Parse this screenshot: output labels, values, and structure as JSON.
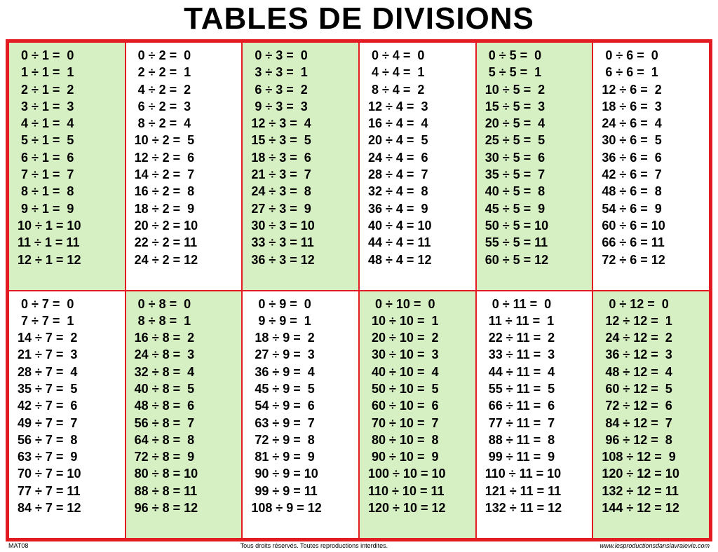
{
  "title": "TABLES DE DIVISIONS",
  "title_fontsize": 44,
  "border_color": "#e31c23",
  "border_width_outer": 5,
  "border_width_inner": 2,
  "highlight_bg": "#d6efc3",
  "plain_bg": "#ffffff",
  "text_color": "#000000",
  "eq_fontsize": 18,
  "layout": {
    "rows": 2,
    "cols": 6
  },
  "divisors_row1": [
    1,
    2,
    3,
    4,
    5,
    6
  ],
  "divisors_row2": [
    7,
    8,
    9,
    10,
    11,
    12
  ],
  "results": [
    0,
    1,
    2,
    3,
    4,
    5,
    6,
    7,
    8,
    9,
    10,
    11,
    12
  ],
  "highlight_row1": [
    true,
    false,
    true,
    false,
    true,
    false
  ],
  "highlight_row2": [
    false,
    true,
    false,
    true,
    false,
    true
  ],
  "operator": "÷",
  "equals": "=",
  "footer_left": "MAT08",
  "footer_center": "Tous droits réservés. Toutes reproductions interdites.",
  "footer_right": "www.lesproductionsdanslavraievie.com"
}
